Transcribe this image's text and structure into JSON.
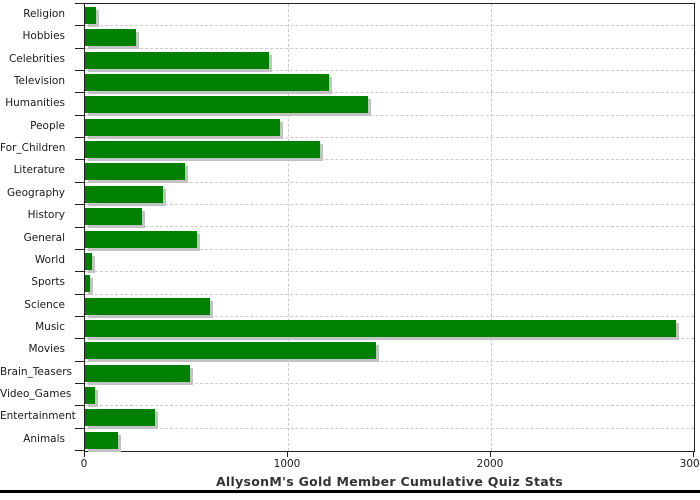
{
  "chart_data": {
    "type": "bar",
    "orientation": "horizontal",
    "title": "AllysonM's Gold Member Cumulative Quiz Stats",
    "categories": [
      "Religion",
      "Hobbies",
      "Celebrities",
      "Television",
      "Humanities",
      "People",
      "For_Children",
      "Literature",
      "Geography",
      "History",
      "General",
      "World",
      "Sports",
      "Science",
      "Music",
      "Movies",
      "Brain_Teasers",
      "Video_Games",
      "Entertainment",
      "Animals"
    ],
    "values": [
      55,
      250,
      905,
      1200,
      1395,
      960,
      1160,
      495,
      385,
      280,
      550,
      35,
      25,
      615,
      2910,
      1435,
      515,
      50,
      345,
      165
    ],
    "xlim": [
      0,
      3000
    ],
    "x_ticks": [
      "0",
      "1000",
      "2000",
      "3000"
    ],
    "x_tick_values": [
      0,
      1000,
      2000,
      3000
    ],
    "grid": "dashed",
    "legend": "none",
    "bar_color": "#008000",
    "bar_shadow_color": "#c3c3c3",
    "gridline_color": "#cccccc",
    "axis_color": "#222222",
    "title_color": "#333333",
    "label_color": "#1a1a1a"
  }
}
